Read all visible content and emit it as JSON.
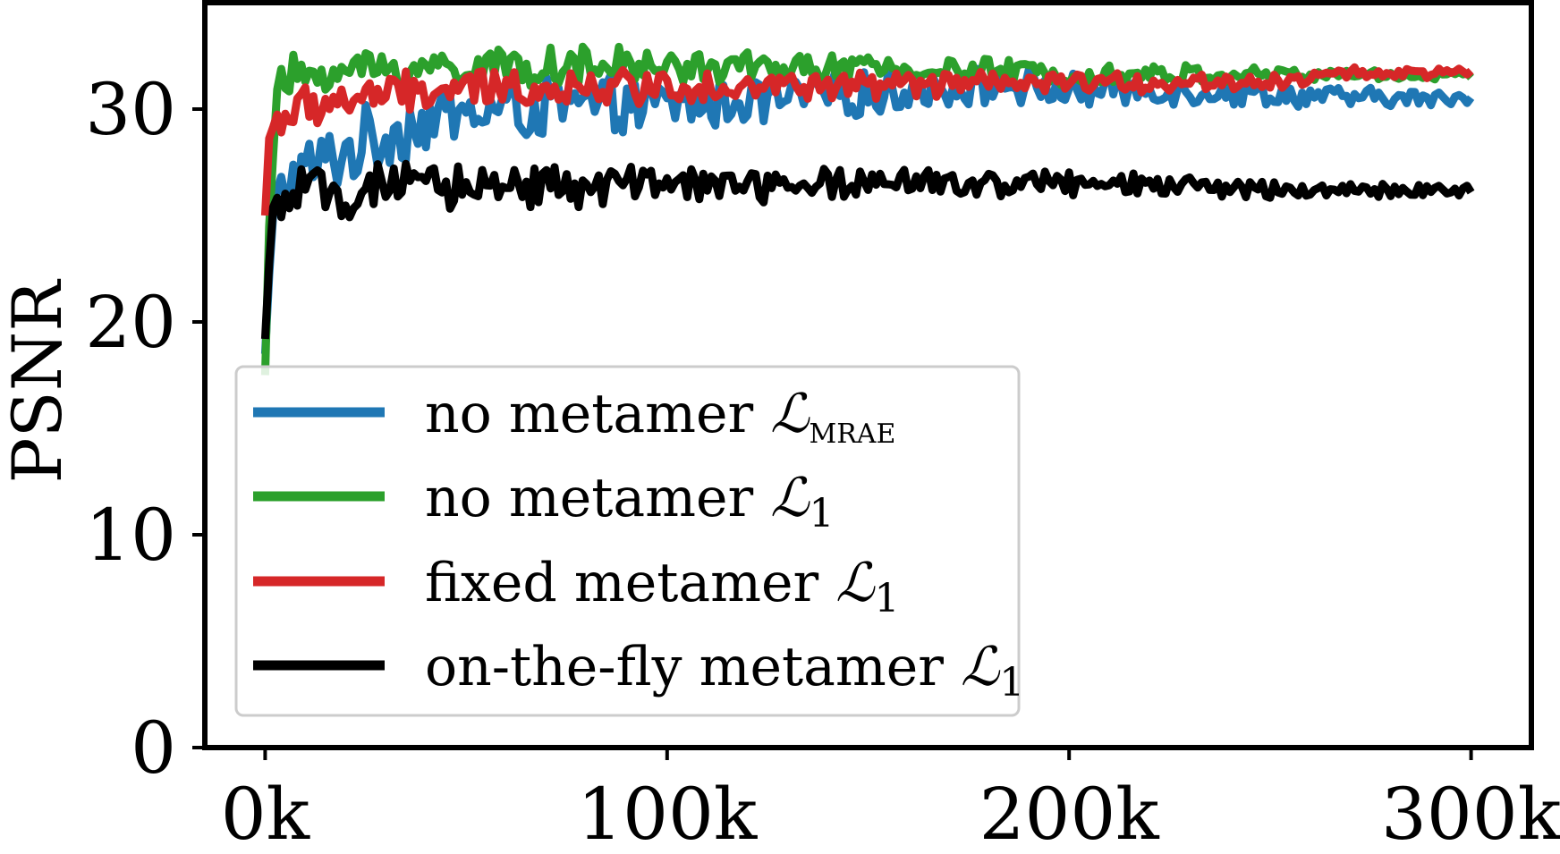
{
  "chart_data": {
    "type": "line",
    "title": "",
    "xlabel": "",
    "ylabel": "PSNR",
    "xlim": [
      -15000,
      315000
    ],
    "ylim": [
      0,
      35
    ],
    "grid": false,
    "xticks": [
      0,
      100000,
      200000,
      300000
    ],
    "xtick_labels": [
      "0k",
      "100k",
      "200k",
      "300k"
    ],
    "yticks": [
      0,
      10,
      20,
      30
    ],
    "ytick_labels": [
      "0",
      "10",
      "20",
      "30"
    ],
    "legend_position": "lower-left",
    "series": [
      {
        "name": "no metamer",
        "loss": "MRAE",
        "color": "#1f77b4",
        "points": [
          [
            0,
            18.5
          ],
          [
            1500,
            24
          ],
          [
            3000,
            25.5
          ],
          [
            5000,
            26.5
          ],
          [
            10000,
            27
          ],
          [
            20000,
            28
          ],
          [
            30000,
            28.8
          ],
          [
            40000,
            29.5
          ],
          [
            60000,
            30
          ],
          [
            80000,
            30.1
          ],
          [
            100000,
            30.2
          ],
          [
            130000,
            30.5
          ],
          [
            150000,
            30.7
          ],
          [
            170000,
            31
          ],
          [
            185000,
            31.1
          ],
          [
            200000,
            30.9
          ],
          [
            220000,
            30.9
          ],
          [
            240000,
            30.8
          ],
          [
            260000,
            30.6
          ],
          [
            280000,
            30.5
          ],
          [
            300000,
            30.5
          ]
        ],
        "noise": [
          2.0,
          0.4
        ]
      },
      {
        "name": "no metamer",
        "loss": "1",
        "color": "#2ca02c",
        "points": [
          [
            0,
            17.5
          ],
          [
            1500,
            28
          ],
          [
            3000,
            30.5
          ],
          [
            5000,
            31.2
          ],
          [
            10000,
            31.7
          ],
          [
            30000,
            31.9
          ],
          [
            60000,
            32
          ],
          [
            100000,
            32
          ],
          [
            150000,
            31.9
          ],
          [
            200000,
            31.7
          ],
          [
            250000,
            31.6
          ],
          [
            300000,
            31.6
          ]
        ],
        "noise": [
          1.3,
          0.25
        ]
      },
      {
        "name": "fixed metamer",
        "loss": "1",
        "color": "#d62728",
        "points": [
          [
            0,
            25
          ],
          [
            800,
            28.5
          ],
          [
            2000,
            29.2
          ],
          [
            5000,
            29.8
          ],
          [
            15000,
            30.3
          ],
          [
            30000,
            30.7
          ],
          [
            60000,
            31
          ],
          [
            100000,
            31.1
          ],
          [
            150000,
            31.1
          ],
          [
            200000,
            31.2
          ],
          [
            250000,
            31.3
          ],
          [
            270000,
            31.7
          ],
          [
            300000,
            31.7
          ]
        ],
        "noise": [
          1.2,
          0.25
        ]
      },
      {
        "name": "on-the-fly metamer",
        "loss": "1",
        "color": "#000000",
        "points": [
          [
            0,
            19.2
          ],
          [
            1500,
            24.5
          ],
          [
            3000,
            25.5
          ],
          [
            5000,
            25.8
          ],
          [
            10000,
            26
          ],
          [
            30000,
            26.2
          ],
          [
            60000,
            26.5
          ],
          [
            100000,
            26.4
          ],
          [
            150000,
            26.5
          ],
          [
            200000,
            26.5
          ],
          [
            240000,
            26.3
          ],
          [
            270000,
            26.2
          ],
          [
            300000,
            26.2
          ]
        ],
        "noise": [
          1.4,
          0.3
        ]
      }
    ]
  }
}
